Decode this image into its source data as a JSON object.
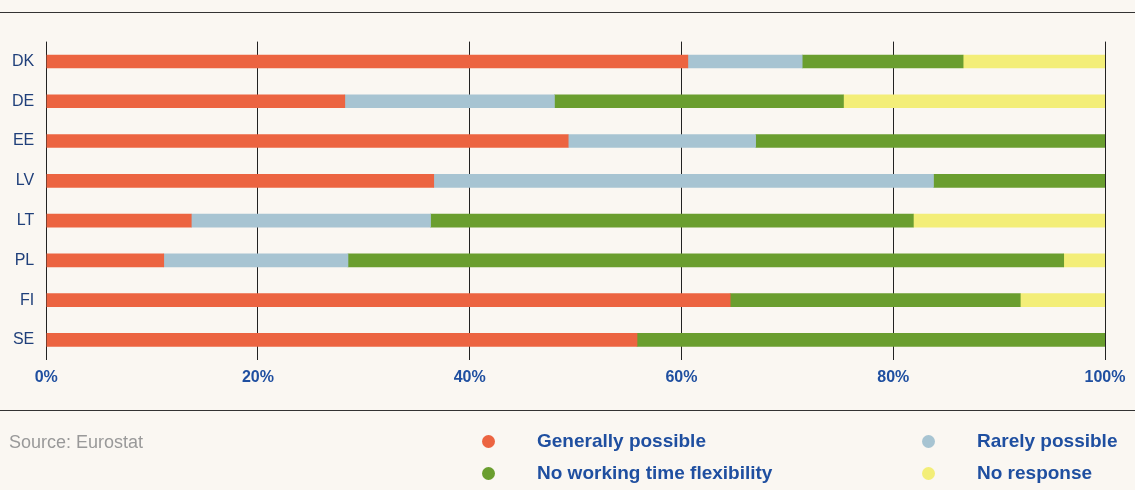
{
  "chart_data": {
    "type": "bar",
    "orientation": "horizontal",
    "stacked": true,
    "categories": [
      "DK",
      "DE",
      "EE",
      "LV",
      "LT",
      "PL",
      "FI",
      "SE"
    ],
    "series": [
      {
        "name": "Generally possible",
        "color": "#ec6441",
        "values": [
          60.6,
          28.2,
          49.3,
          36.6,
          13.7,
          11.1,
          64.6,
          55.8
        ]
      },
      {
        "name": "Rarely possible",
        "color": "#a7c4d2",
        "values": [
          10.8,
          19.8,
          17.7,
          47.2,
          22.6,
          17.4,
          null,
          null
        ]
      },
      {
        "name": "No working time flexibility",
        "color": "#6a9e2f",
        "values": [
          15.2,
          27.3,
          33,
          16.2,
          45.6,
          67.6,
          27.4,
          44.2
        ]
      },
      {
        "name": "No response",
        "color": "#f3ee78",
        "values": [
          13.4,
          24.7,
          null,
          null,
          18.1,
          3.9,
          8,
          null
        ]
      }
    ],
    "xlim": [
      0,
      100
    ],
    "xticks": [
      {
        "value": 0,
        "label": "0%"
      },
      {
        "value": 20,
        "label": "20%"
      },
      {
        "value": 40,
        "label": "40%"
      },
      {
        "value": 60,
        "label": "60%"
      },
      {
        "value": 80,
        "label": "80%"
      },
      {
        "value": 100,
        "label": "100%"
      }
    ],
    "grid": "x",
    "legend": "bottom",
    "marker": "circle",
    "annotations": [
      "Source: Eurostat"
    ]
  }
}
